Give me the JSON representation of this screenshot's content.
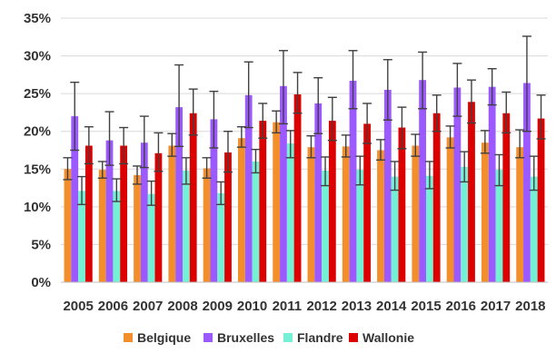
{
  "chart_data": {
    "type": "bar",
    "title": "",
    "xlabel": "",
    "ylabel": "",
    "ylim": [
      0,
      0.35
    ],
    "y_ticks": [
      "0%",
      "5%",
      "10%",
      "15%",
      "20%",
      "25%",
      "30%",
      "35%"
    ],
    "y_tick_values": [
      0,
      0.05,
      0.1,
      0.15,
      0.2,
      0.25,
      0.3,
      0.35
    ],
    "grid": "horizontal",
    "legend_position": "bottom",
    "categories": [
      "2005",
      "2006",
      "2007",
      "2008",
      "2009",
      "2010",
      "2011",
      "2012",
      "2013",
      "2014",
      "2015",
      "2016",
      "2017",
      "2018"
    ],
    "series": [
      {
        "name": "Belgique",
        "color": "#f28e2b",
        "values": [
          0.15,
          0.149,
          0.142,
          0.181,
          0.151,
          0.191,
          0.212,
          0.179,
          0.18,
          0.175,
          0.181,
          0.192,
          0.185,
          0.179
        ],
        "err_low": [
          0.136,
          0.138,
          0.13,
          0.167,
          0.138,
          0.179,
          0.198,
          0.165,
          0.166,
          0.162,
          0.167,
          0.178,
          0.171,
          0.165
        ],
        "err_high": [
          0.165,
          0.16,
          0.154,
          0.197,
          0.165,
          0.206,
          0.227,
          0.194,
          0.195,
          0.189,
          0.196,
          0.207,
          0.201,
          0.202
        ]
      },
      {
        "name": "Bruxelles",
        "color": "#9b59ff",
        "values": [
          0.22,
          0.188,
          0.185,
          0.232,
          0.216,
          0.248,
          0.26,
          0.237,
          0.267,
          0.255,
          0.268,
          0.258,
          0.259,
          0.264
        ],
        "err_low": [
          0.175,
          0.155,
          0.152,
          0.18,
          0.178,
          0.205,
          0.21,
          0.197,
          0.23,
          0.215,
          0.23,
          0.22,
          0.235,
          0.2
        ],
        "err_high": [
          0.265,
          0.226,
          0.22,
          0.288,
          0.253,
          0.292,
          0.307,
          0.271,
          0.307,
          0.295,
          0.305,
          0.29,
          0.283,
          0.326
        ]
      },
      {
        "name": "Flandre",
        "color": "#74f0d4",
        "values": [
          0.121,
          0.121,
          0.117,
          0.148,
          0.118,
          0.16,
          0.184,
          0.148,
          0.149,
          0.14,
          0.141,
          0.153,
          0.149,
          0.14
        ],
        "err_low": [
          0.103,
          0.107,
          0.102,
          0.13,
          0.103,
          0.145,
          0.165,
          0.128,
          0.129,
          0.122,
          0.124,
          0.133,
          0.128,
          0.122
        ],
        "err_high": [
          0.14,
          0.137,
          0.134,
          0.165,
          0.133,
          0.176,
          0.201,
          0.166,
          0.167,
          0.16,
          0.16,
          0.173,
          0.169,
          0.167
        ]
      },
      {
        "name": "Wallonie",
        "color": "#dd0000",
        "values": [
          0.181,
          0.181,
          0.171,
          0.224,
          0.172,
          0.214,
          0.249,
          0.214,
          0.21,
          0.205,
          0.224,
          0.239,
          0.224,
          0.217
        ],
        "err_low": [
          0.157,
          0.157,
          0.147,
          0.195,
          0.146,
          0.191,
          0.224,
          0.188,
          0.184,
          0.177,
          0.2,
          0.211,
          0.198,
          0.19
        ],
        "err_high": [
          0.206,
          0.205,
          0.198,
          0.256,
          0.2,
          0.237,
          0.278,
          0.245,
          0.237,
          0.232,
          0.248,
          0.268,
          0.252,
          0.248
        ]
      }
    ]
  }
}
